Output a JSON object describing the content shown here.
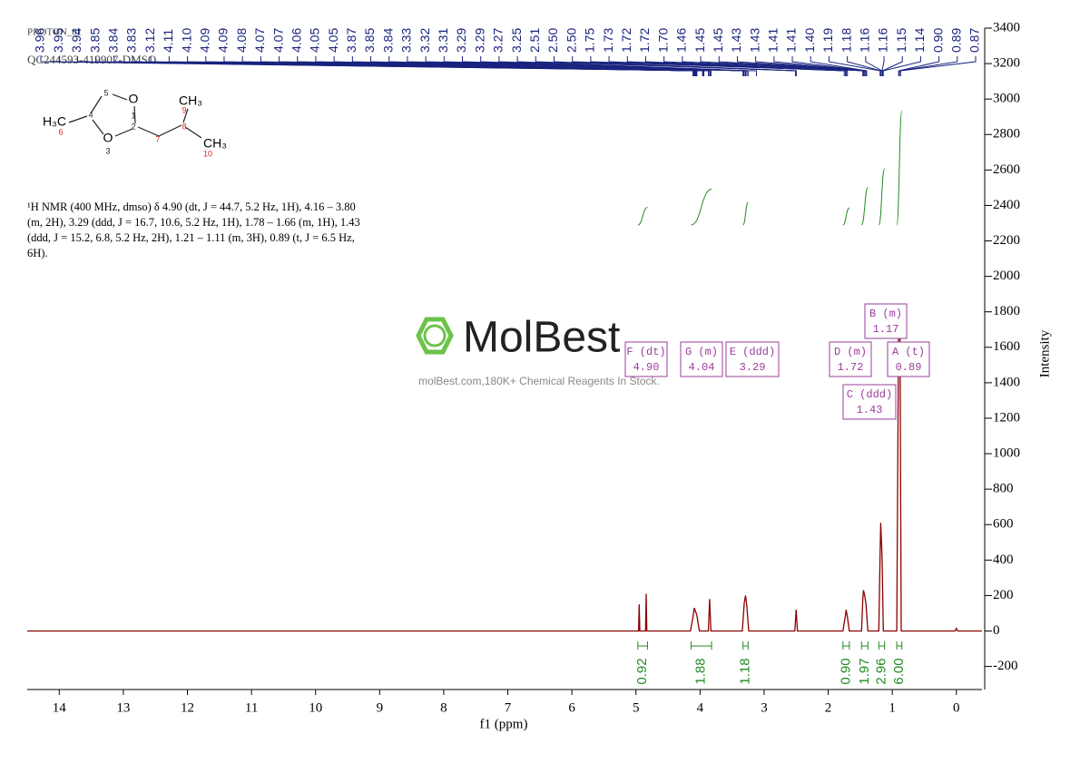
{
  "header": {
    "experiment": "PROTON_01",
    "sample": "QC244593-419907-DMSO"
  },
  "structure": {
    "atoms": [
      "O",
      "O",
      "H₃C",
      "CH₃",
      "CH₃"
    ],
    "numbers": [
      "1",
      "2",
      "3",
      "4",
      "5",
      "6",
      "7",
      "8",
      "9",
      "10"
    ]
  },
  "description": [
    "¹H NMR (400 MHz, dmso) δ 4.90 (dt, J = 44.7, 5.2 Hz, 1H), 4.16 – 3.80",
    "(m, 2H), 3.29 (ddd, J = 16.7, 10.6, 5.2 Hz, 1H), 1.78 – 1.66 (m, 1H), 1.43",
    "(ddd, J = 15.2, 6.8, 5.2 Hz, 2H), 1.21 – 1.11 (m, 3H), 0.89 (t, J = 6.5 Hz,",
    "6H)."
  ],
  "watermark": {
    "brand": "MolBest",
    "tagline": "molBest.com,180K+ Chemical Reagents In Stock."
  },
  "chart_data": {
    "type": "line",
    "x_label": "f1 (ppm)",
    "y_label": "Intensity",
    "color": "#8b0000",
    "xlim": [
      14.5,
      -0.4
    ],
    "ylim": [
      -330,
      3400
    ],
    "xticks": [
      14,
      13,
      12,
      11,
      10,
      9,
      8,
      7,
      6,
      5,
      4,
      3,
      2,
      1,
      0
    ],
    "yticks": [
      -200,
      0,
      200,
      400,
      600,
      800,
      1000,
      1200,
      1400,
      1600,
      1800,
      2000,
      2200,
      2400,
      2600,
      2800,
      3000,
      3200,
      3400
    ],
    "x": [
      14.5,
      5.0,
      4.96,
      4.95,
      4.94,
      4.85,
      4.84,
      4.83,
      4.15,
      4.11,
      4.09,
      4.07,
      4.05,
      4.01,
      3.87,
      3.85,
      3.83,
      3.34,
      3.31,
      3.29,
      3.27,
      3.24,
      2.52,
      2.5,
      2.48,
      1.77,
      1.73,
      1.72,
      1.7,
      1.67,
      1.48,
      1.46,
      1.45,
      1.43,
      1.41,
      1.38,
      1.21,
      1.19,
      1.18,
      1.16,
      1.14,
      0.93,
      0.9,
      0.88,
      0.86,
      0.02,
      0.0,
      -0.02,
      -0.4
    ],
    "values": [
      0,
      0,
      0,
      150,
      0,
      0,
      210,
      0,
      0,
      80,
      130,
      110,
      90,
      0,
      0,
      180,
      0,
      0,
      160,
      200,
      140,
      0,
      0,
      120,
      0,
      0,
      90,
      120,
      80,
      0,
      0,
      180,
      230,
      200,
      150,
      0,
      0,
      420,
      610,
      420,
      0,
      0,
      1790,
      1780,
      0,
      0,
      15,
      0,
      0
    ],
    "peak_labels": [
      "3.96",
      "3.95",
      "3.94",
      "3.85",
      "3.84",
      "3.83",
      "3.12",
      "4.11",
      "4.10",
      "4.09",
      "4.09",
      "4.08",
      "4.07",
      "4.07",
      "4.06",
      "4.05",
      "4.05",
      "3.87",
      "3.85",
      "3.84",
      "3.33",
      "3.32",
      "3.31",
      "3.29",
      "3.29",
      "3.27",
      "3.25",
      "2.51",
      "2.50",
      "2.50",
      "1.75",
      "1.73",
      "1.72",
      "1.72",
      "1.70",
      "1.46",
      "1.45",
      "1.45",
      "1.43",
      "1.43",
      "1.41",
      "1.41",
      "1.40",
      "1.19",
      "1.18",
      "1.16",
      "1.16",
      "1.15",
      "1.14",
      "0.90",
      "0.89",
      "0.87"
    ],
    "multiplets": [
      {
        "label": "F (dt)",
        "shift": "4.90"
      },
      {
        "label": "G (m)",
        "shift": "4.04"
      },
      {
        "label": "E (ddd)",
        "shift": "3.29"
      },
      {
        "label": "D (m)",
        "shift": "1.72"
      },
      {
        "label": "A (t)",
        "shift": "0.89"
      },
      {
        "label": "B (m)",
        "shift": "1.17"
      },
      {
        "label": "C (ddd)",
        "shift": "1.43"
      }
    ],
    "integrals": [
      {
        "from": 4.97,
        "to": 4.82,
        "value": 0.92,
        "label": "0.92"
      },
      {
        "from": 4.14,
        "to": 3.82,
        "value": 1.88,
        "label": "1.88"
      },
      {
        "from": 3.33,
        "to": 3.25,
        "value": 1.18,
        "label": "1.18"
      },
      {
        "from": 1.77,
        "to": 1.67,
        "value": 0.9,
        "label": "0.90"
      },
      {
        "from": 1.48,
        "to": 1.38,
        "value": 1.97,
        "label": "1.97"
      },
      {
        "from": 1.21,
        "to": 1.12,
        "value": 2.96,
        "label": "2.96"
      },
      {
        "from": 0.93,
        "to": 0.85,
        "value": 6.0,
        "label": "6.00"
      }
    ]
  }
}
